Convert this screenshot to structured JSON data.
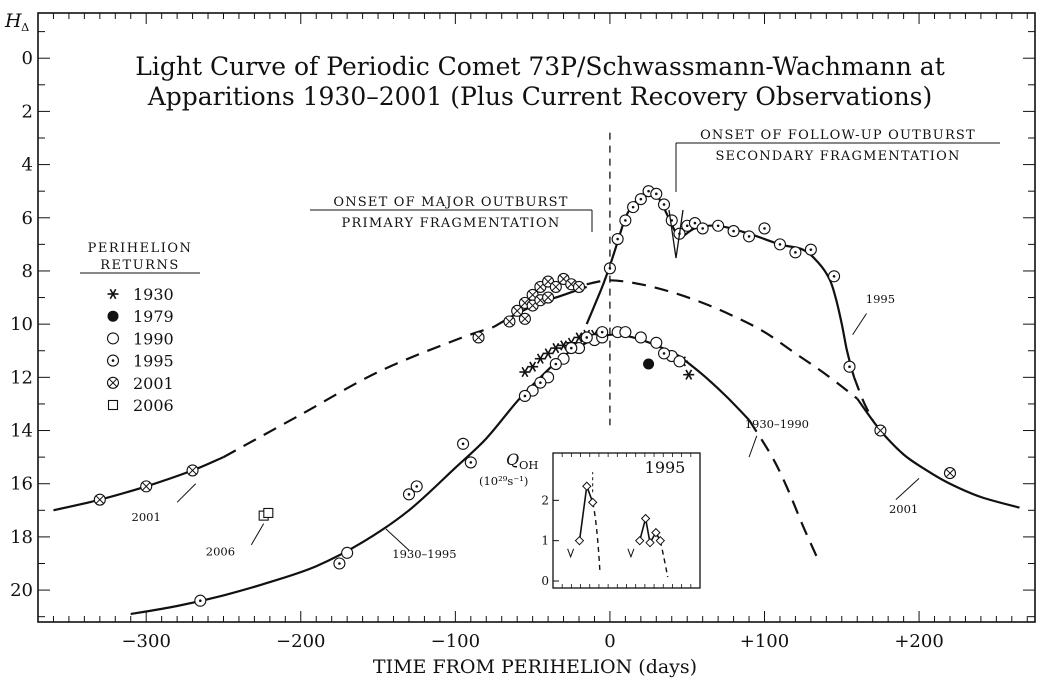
{
  "chart_data": {
    "type": "scatter",
    "title_lines": [
      "Light Curve of Periodic Comet 73P/Schwassmann-Wachmann at",
      "Apparitions 1930–2001 (Plus Current Recovery Observations)"
    ],
    "xlabel": "TIME FROM PERIHELION (days)",
    "ylabel": "H",
    "ylabel_subscript": "Δ",
    "xlim": [
      -370,
      275
    ],
    "ylim": [
      21.2,
      -1.7
    ],
    "x_ticks": [
      -300,
      -200,
      -100,
      0,
      100,
      200
    ],
    "x_tick_labels": [
      "−300",
      "−200",
      "−100",
      "0",
      "+100",
      "+200"
    ],
    "y_ticks": [
      0,
      2,
      4,
      6,
      8,
      10,
      12,
      14,
      16,
      18,
      20
    ],
    "y_tick_labels": [
      "0",
      "2",
      "4",
      "6",
      "8",
      "10",
      "12",
      "14",
      "16",
      "18",
      "20"
    ],
    "y_reversed": true,
    "perihelion_marker_x": 0,
    "legend": {
      "title_lines": [
        "PERIHELION",
        "RETURNS"
      ],
      "placement": "left",
      "entries": [
        {
          "year": "1930",
          "marker": "asterisk"
        },
        {
          "year": "1979",
          "marker": "filled-circle"
        },
        {
          "year": "1990",
          "marker": "open-circle"
        },
        {
          "year": "1995",
          "marker": "dotted-circle"
        },
        {
          "year": "2001",
          "marker": "crossed-circle"
        },
        {
          "year": "2006",
          "marker": "square"
        }
      ]
    },
    "curves": [
      {
        "name": "2001",
        "style": "solid",
        "x": [
          -360,
          -330,
          -300,
          -270,
          -250
        ],
        "y": [
          17.0,
          16.6,
          16.1,
          15.5,
          15.0
        ]
      },
      {
        "name": "2001",
        "style": "dashed",
        "x": [
          -250,
          -200,
          -150,
          -100,
          -75
        ],
        "y": [
          15.0,
          13.4,
          11.8,
          10.6,
          10.1
        ]
      },
      {
        "name": "2001",
        "style": "solid",
        "x": [
          -75,
          -60,
          -45,
          -30,
          -15
        ],
        "y": [
          10.1,
          9.6,
          9.2,
          8.9,
          8.6
        ]
      },
      {
        "name": "",
        "style": "dashed",
        "x": [
          -15,
          0,
          20,
          40,
          60,
          80,
          100,
          120,
          140,
          160
        ],
        "y": [
          8.5,
          8.35,
          8.5,
          8.8,
          9.2,
          9.7,
          10.3,
          11.1,
          11.9,
          12.8
        ]
      },
      {
        "name": "2001",
        "style": "solid",
        "x": [
          160,
          175,
          190,
          205,
          220,
          240,
          265
        ],
        "y": [
          12.8,
          14.0,
          14.9,
          15.5,
          16.0,
          16.5,
          16.9
        ]
      },
      {
        "name": "1930–1995",
        "style": "solid",
        "x": [
          -310,
          -280,
          -250,
          -220,
          -190,
          -160,
          -130,
          -100,
          -80,
          -60,
          -45,
          -30,
          -15,
          0,
          15,
          30,
          45
        ],
        "y": [
          20.9,
          20.6,
          20.2,
          19.7,
          19.1,
          18.2,
          17.0,
          15.4,
          14.3,
          12.9,
          12.0,
          11.2,
          10.7,
          10.4,
          10.5,
          10.8,
          11.2
        ]
      },
      {
        "name": "1930–1995",
        "style": "solid",
        "x": [
          45,
          60,
          75,
          90
        ],
        "y": [
          11.2,
          11.9,
          12.7,
          13.6
        ]
      },
      {
        "name": "1930–1990",
        "style": "dashed",
        "x": [
          90,
          105,
          115,
          125,
          135
        ],
        "y": [
          13.6,
          15.0,
          16.2,
          17.6,
          18.9
        ]
      },
      {
        "name": "1995",
        "style": "solid",
        "x": [
          -15,
          -10,
          -5,
          0,
          5,
          10,
          15,
          22,
          28,
          33,
          38,
          45,
          55,
          70,
          90,
          110,
          125,
          135,
          142,
          146,
          150,
          153,
          156,
          158
        ],
        "y": [
          10.0,
          9.3,
          8.6,
          7.8,
          6.9,
          6.0,
          5.5,
          5.1,
          5.0,
          5.4,
          6.0,
          6.7,
          6.4,
          6.3,
          6.6,
          7.0,
          7.2,
          7.7,
          8.3,
          9.0,
          10.0,
          10.9,
          11.6,
          12.0
        ]
      },
      {
        "name": "1995",
        "style": "dashed",
        "x": [
          158,
          164,
          170
        ],
        "y": [
          12.0,
          12.9,
          13.6
        ]
      }
    ],
    "curve_labels": [
      {
        "text": "2001",
        "x": -300,
        "y": 17.4
      },
      {
        "text": "2006",
        "x": -252,
        "y": 18.7
      },
      {
        "text": "1930–1995",
        "x": -120,
        "y": 18.8
      },
      {
        "text": "1930–1990",
        "x": 108,
        "y": 13.9
      },
      {
        "text": "1995",
        "x": 175,
        "y": 9.2
      },
      {
        "text": "2001",
        "x": 190,
        "y": 17.1
      }
    ],
    "annotations": [
      {
        "lines": [
          "ONSET OF MAJOR OUTBURST",
          "PRIMARY FRAGMENTATION"
        ],
        "x": -15
      },
      {
        "lines": [
          "ONSET OF FOLLOW-UP OUTBURST",
          "SECONDARY FRAGMENTATION"
        ],
        "x": 44
      }
    ],
    "series": [
      {
        "name": "1930",
        "marker": "asterisk",
        "x": [
          -55,
          -50,
          -45,
          -40,
          -35,
          -30,
          -25,
          -20,
          -15,
          -10,
          47,
          51
        ],
        "y": [
          11.8,
          11.6,
          11.3,
          11.1,
          10.9,
          10.8,
          10.7,
          10.5,
          10.4,
          10.4,
          11.4,
          11.9
        ]
      },
      {
        "name": "1979",
        "marker": "filled-circle",
        "x": [
          25
        ],
        "y": [
          11.5
        ]
      },
      {
        "name": "1990",
        "marker": "open-circle",
        "x": [
          -170,
          -50,
          -40,
          -30,
          -20,
          -10,
          -5,
          5,
          10,
          20,
          30,
          40,
          45
        ],
        "y": [
          18.6,
          12.5,
          12.0,
          11.3,
          10.9,
          10.6,
          10.5,
          10.3,
          10.3,
          10.5,
          10.7,
          11.2,
          11.4
        ]
      },
      {
        "name": "1995",
        "marker": "dotted-circle",
        "x": [
          -265,
          -175,
          -130,
          -125,
          -95,
          -90,
          -55,
          -45,
          -35,
          -25,
          -15,
          -5,
          0,
          5,
          10,
          15,
          20,
          25,
          30,
          35,
          40,
          45,
          50,
          55,
          60,
          70,
          80,
          90,
          100,
          110,
          120,
          130,
          145,
          155,
          35
        ],
        "y": [
          20.4,
          19.0,
          16.4,
          16.1,
          14.5,
          15.2,
          12.7,
          12.2,
          11.5,
          10.9,
          10.5,
          10.3,
          7.9,
          6.8,
          6.1,
          5.6,
          5.3,
          5.0,
          5.1,
          5.5,
          6.1,
          6.6,
          6.3,
          6.2,
          6.4,
          6.3,
          6.5,
          6.7,
          6.4,
          7.0,
          7.3,
          7.2,
          8.2,
          11.6,
          11.1
        ]
      },
      {
        "name": "2001",
        "marker": "crossed-circle",
        "x": [
          -330,
          -300,
          -270,
          -85,
          -65,
          -60,
          -55,
          -50,
          -45,
          -40,
          -35,
          -30,
          -25,
          -20,
          -55,
          -50,
          -45,
          -40,
          175,
          220
        ],
        "y": [
          16.6,
          16.1,
          15.5,
          10.5,
          9.9,
          9.5,
          9.2,
          8.9,
          8.6,
          8.4,
          8.6,
          8.3,
          8.5,
          8.6,
          9.8,
          9.3,
          9.1,
          9.0,
          14.0,
          15.6
        ]
      },
      {
        "name": "2006",
        "marker": "square",
        "x": [
          -224,
          -221
        ],
        "y": [
          17.2,
          17.1
        ]
      }
    ],
    "inset": {
      "title": "1995",
      "ylabel": "Q",
      "ylabel_subscript": "OH",
      "ylabel_units": "(10²⁹s⁻¹)",
      "ylim": [
        0,
        3
      ],
      "y_ticks": [
        0,
        1,
        2
      ],
      "y_tick_labels": [
        "0",
        "1",
        "2"
      ],
      "series": {
        "x": [
          0.18,
          0.23,
          0.27,
          0.59,
          0.63,
          0.66,
          0.7,
          0.73
        ],
        "y": [
          1.0,
          2.35,
          1.95,
          1.0,
          1.55,
          0.95,
          1.2,
          1.0
        ]
      },
      "upper_limits": [
        0.12,
        0.53
      ]
    }
  }
}
